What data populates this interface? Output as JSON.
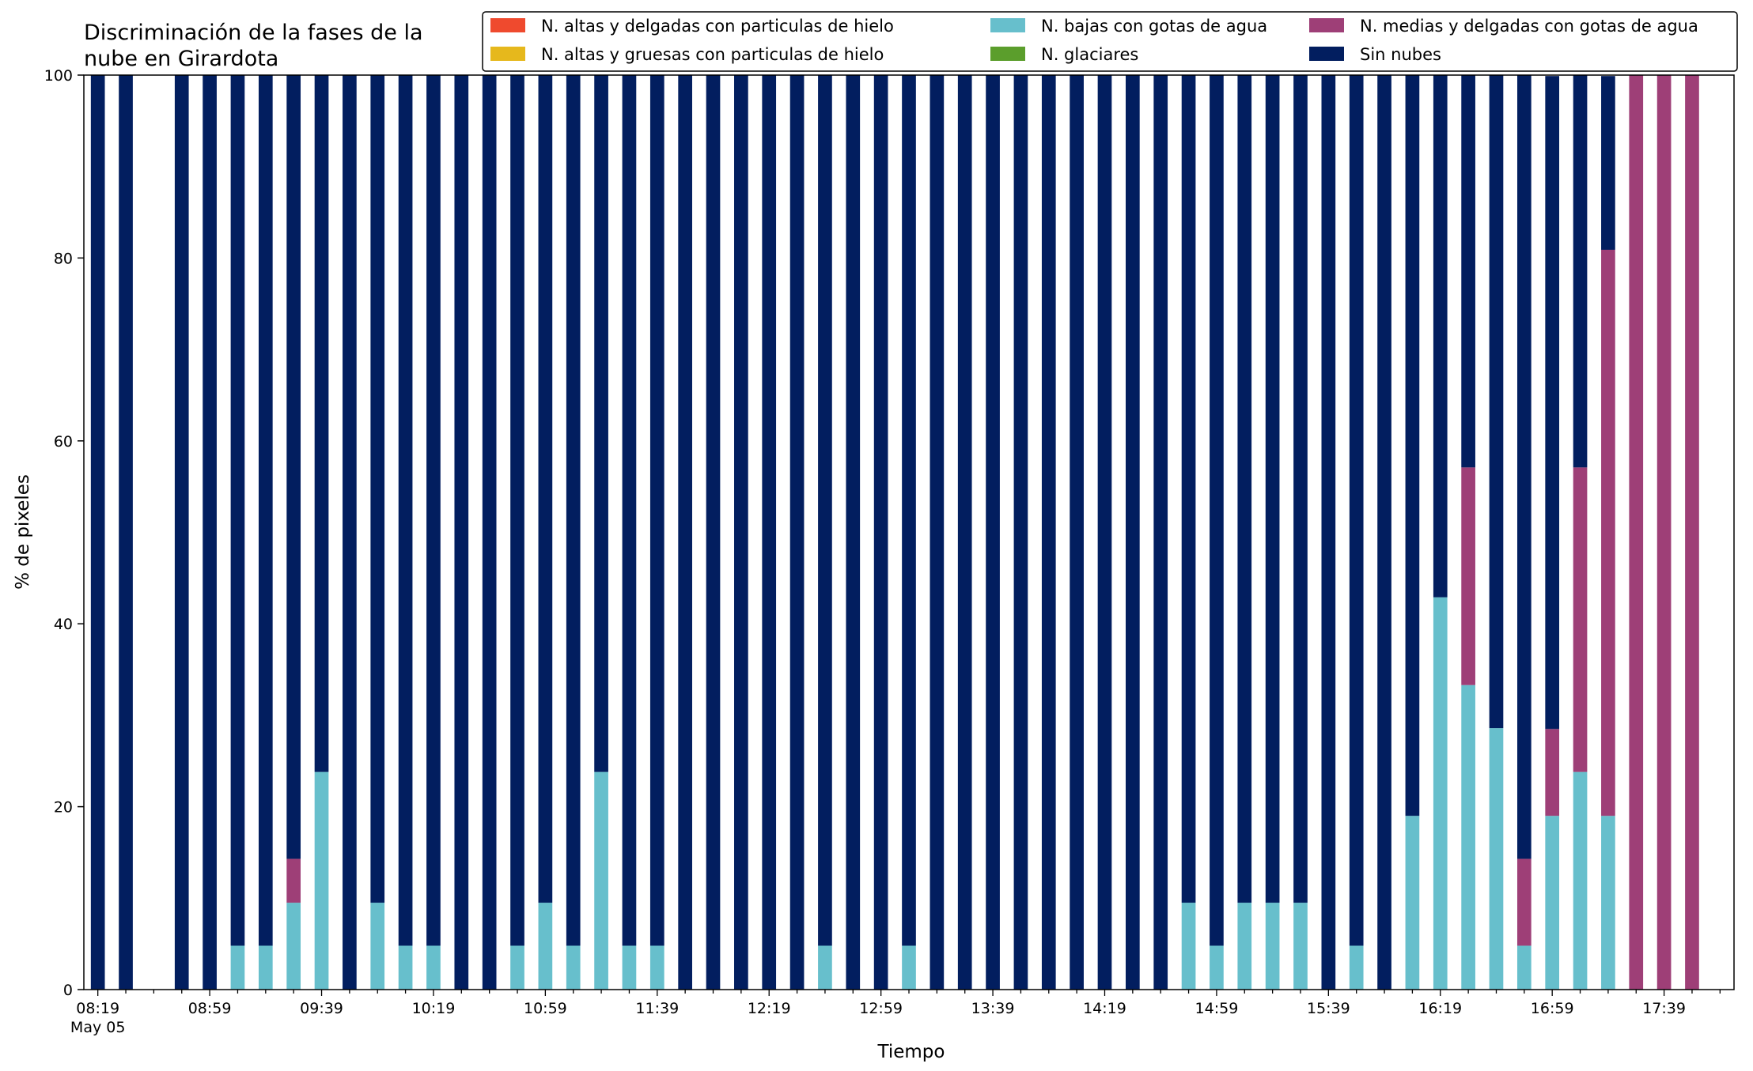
{
  "chart_data": {
    "type": "bar",
    "stacked": true,
    "title_lines": [
      "Discriminación de la fases de la",
      "nube en Girardota"
    ],
    "xlabel": "Tiempo",
    "ylabel": "% de pixeles",
    "ylim": [
      0,
      100
    ],
    "yticks": [
      0,
      20,
      40,
      60,
      80,
      100
    ],
    "grid": false,
    "legend_position": "top-right",
    "x_start": "08:19",
    "x_end": "17:59",
    "x_step_minutes": 10,
    "x": [
      "08:19",
      "08:29",
      "08:39",
      "08:49",
      "08:59",
      "09:09",
      "09:19",
      "09:29",
      "09:39",
      "09:49",
      "09:59",
      "10:09",
      "10:19",
      "10:29",
      "10:39",
      "10:49",
      "10:59",
      "11:09",
      "11:19",
      "11:29",
      "11:39",
      "11:49",
      "11:59",
      "12:09",
      "12:19",
      "12:29",
      "12:39",
      "12:49",
      "12:59",
      "13:09",
      "13:19",
      "13:29",
      "13:39",
      "13:49",
      "13:59",
      "14:09",
      "14:19",
      "14:29",
      "14:39",
      "14:49",
      "14:59",
      "15:09",
      "15:19",
      "15:29",
      "15:39",
      "15:49",
      "15:59",
      "16:09",
      "16:19",
      "16:29",
      "16:39",
      "16:49",
      "16:59",
      "17:09",
      "17:19",
      "17:29",
      "17:39",
      "17:49",
      "17:59"
    ],
    "xticks": [
      {
        "value": "08:19",
        "label": "08:19",
        "sublabel": "May 05"
      },
      {
        "value": "08:59",
        "label": "08:59"
      },
      {
        "value": "09:39",
        "label": "09:39"
      },
      {
        "value": "10:19",
        "label": "10:19"
      },
      {
        "value": "10:59",
        "label": "10:59"
      },
      {
        "value": "11:39",
        "label": "11:39"
      },
      {
        "value": "12:19",
        "label": "12:19"
      },
      {
        "value": "12:59",
        "label": "12:59"
      },
      {
        "value": "13:39",
        "label": "13:39"
      },
      {
        "value": "14:19",
        "label": "14:19"
      },
      {
        "value": "14:59",
        "label": "14:59"
      },
      {
        "value": "15:39",
        "label": "15:39"
      },
      {
        "value": "16:19",
        "label": "16:19"
      },
      {
        "value": "16:59",
        "label": "16:59"
      },
      {
        "value": "17:39",
        "label": "17:39"
      }
    ],
    "series": [
      {
        "name": "N. altas y delgadas con particulas de hielo",
        "color": "#ef4a2e",
        "values": [
          0,
          0,
          null,
          0,
          0,
          0,
          0,
          0,
          0,
          0,
          0,
          0,
          0,
          0,
          0,
          0,
          0,
          0,
          0,
          0,
          0,
          0,
          0,
          0,
          0,
          0,
          0,
          0,
          0,
          0,
          0,
          0,
          0,
          0,
          0,
          0,
          0,
          0,
          0,
          0,
          0,
          0,
          0,
          0,
          0,
          0,
          0,
          0,
          0,
          0,
          0,
          0,
          0,
          0,
          0,
          0,
          0,
          0,
          0
        ]
      },
      {
        "name": "N. altas y gruesas con particulas de hielo",
        "color": "#e6b81c",
        "values": [
          0,
          0,
          null,
          0,
          0,
          0,
          0,
          0,
          0,
          0,
          0,
          0,
          0,
          0,
          0,
          0,
          0,
          0,
          0,
          0,
          0,
          0,
          0,
          0,
          0,
          0,
          0,
          0,
          0,
          0,
          0,
          0,
          0,
          0,
          0,
          0,
          0,
          0,
          0,
          0,
          0,
          0,
          0,
          0,
          0,
          0,
          0,
          0,
          0,
          0,
          0,
          0,
          0,
          0,
          0,
          0,
          0,
          0,
          0
        ]
      },
      {
        "name": "N. bajas con gotas de agua",
        "color": "#67bfcc",
        "values": [
          0,
          0,
          null,
          0,
          0,
          4.8,
          4.8,
          9.5,
          23.8,
          0,
          9.5,
          4.8,
          4.8,
          0,
          0,
          4.8,
          9.5,
          4.8,
          23.8,
          4.8,
          4.8,
          0,
          0,
          0,
          0,
          0,
          4.8,
          0,
          0,
          4.8,
          0,
          0,
          0,
          0,
          0,
          0,
          0,
          0,
          0,
          9.5,
          4.8,
          9.5,
          9.5,
          9.5,
          0,
          4.8,
          0,
          19.0,
          42.9,
          33.3,
          28.6,
          4.8,
          19.0,
          23.8,
          19.0,
          0,
          0,
          0,
          0
        ]
      },
      {
        "name": "N. glaciares",
        "color": "#5b9e2c",
        "values": [
          0,
          0,
          null,
          0,
          0,
          0,
          0,
          0,
          0,
          0,
          0,
          0,
          0,
          0,
          0,
          0,
          0,
          0,
          0,
          0,
          0,
          0,
          0,
          0,
          0,
          0,
          0,
          0,
          0,
          0,
          0,
          0,
          0,
          0,
          0,
          0,
          0,
          0,
          0,
          0,
          0,
          0,
          0,
          0,
          0,
          0,
          0,
          0,
          0,
          0,
          0,
          0,
          0,
          0,
          0,
          0,
          0,
          0,
          0
        ]
      },
      {
        "name": "N. medias y delgadas con gotas de agua",
        "color": "#9e3f77",
        "values": [
          0,
          0,
          null,
          0,
          0,
          0,
          0,
          4.8,
          0,
          0,
          0,
          0,
          0,
          0,
          0,
          0,
          0,
          0,
          0,
          0,
          0,
          0,
          0,
          0,
          0,
          0,
          0,
          0,
          0,
          0,
          0,
          0,
          0,
          0,
          0,
          0,
          0,
          0,
          0,
          0,
          0,
          0,
          0,
          0,
          0,
          0,
          0,
          0,
          0,
          23.8,
          0,
          9.5,
          9.5,
          33.3,
          61.9,
          100,
          100,
          100,
          0
        ]
      },
      {
        "name": "Sin nubes",
        "color": "#021e5f",
        "values": [
          100,
          100,
          null,
          100,
          100,
          95.2,
          95.2,
          85.7,
          76.2,
          100,
          90.5,
          95.2,
          95.2,
          100,
          100,
          95.2,
          90.5,
          95.2,
          76.2,
          95.2,
          95.2,
          100,
          100,
          100,
          100,
          100,
          95.2,
          100,
          100,
          95.2,
          100,
          100,
          100,
          100,
          100,
          100,
          100,
          100,
          100,
          90.5,
          95.2,
          90.5,
          90.5,
          90.5,
          100,
          95.2,
          100,
          81.0,
          57.1,
          42.9,
          71.4,
          85.7,
          71.4,
          42.9,
          19.0,
          0,
          0,
          0,
          0
        ]
      }
    ]
  }
}
